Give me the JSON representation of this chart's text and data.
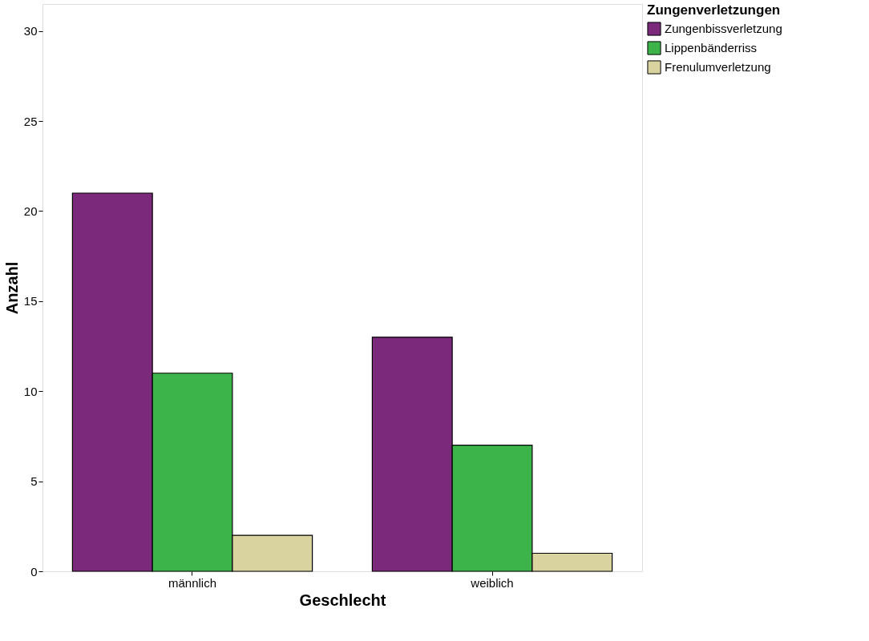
{
  "chart_data": {
    "type": "bar",
    "xlabel": "Geschlecht",
    "ylabel": "Anzahl",
    "legend_title": "Zungenverletzungen",
    "categories": [
      "männlich",
      "weiblich"
    ],
    "series": [
      {
        "name": "Zungenbissverletzung",
        "color": "#7b2a7b",
        "values": [
          21,
          13
        ]
      },
      {
        "name": "Lippenbänderriss",
        "color": "#3cb44a",
        "values": [
          11,
          7
        ]
      },
      {
        "name": "Frenulumverletzung",
        "color": "#d9d3a0",
        "values": [
          2,
          1
        ]
      }
    ],
    "ylim": [
      0,
      31.5
    ],
    "yticks": [
      0,
      5,
      10,
      15,
      20,
      25,
      30
    ],
    "grid": false,
    "legend": "top right"
  }
}
